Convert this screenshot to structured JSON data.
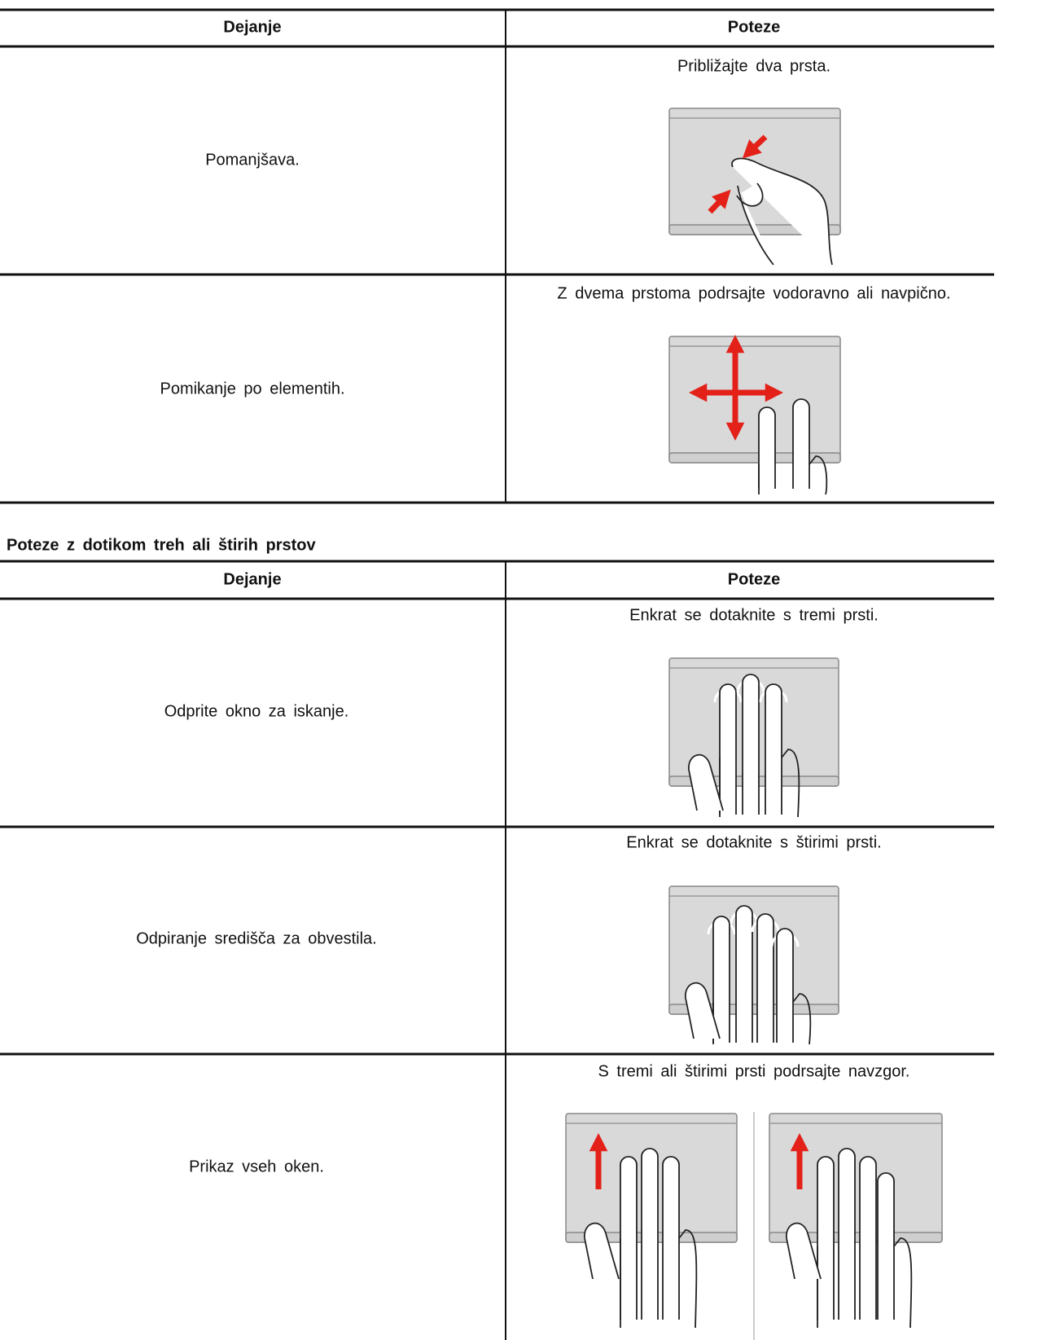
{
  "table1": {
    "headers": [
      "Dejanje",
      "Poteze"
    ],
    "rows": [
      [
        "Pomanjšava.",
        "Približajte dva prsta."
      ],
      [
        "Pomikanje po elementih.",
        "Z dvema prstoma podrsajte vodoravno ali navpično."
      ]
    ]
  },
  "heading": "Poteze z dotikom treh ali štirih prstov",
  "table2": {
    "headers": [
      "Dejanje",
      "Poteze"
    ],
    "rows": [
      [
        "Odprite okno za iskanje.",
        "Enkrat se dotaknite s tremi prsti."
      ],
      [
        "Odpiranje središča za obvestila.",
        "Enkrat se dotaknite s štirimi prsti."
      ],
      [
        "Prikaz vseh oken.",
        "S tremi ali štirimi prsti podrsajte navzgor."
      ]
    ]
  }
}
